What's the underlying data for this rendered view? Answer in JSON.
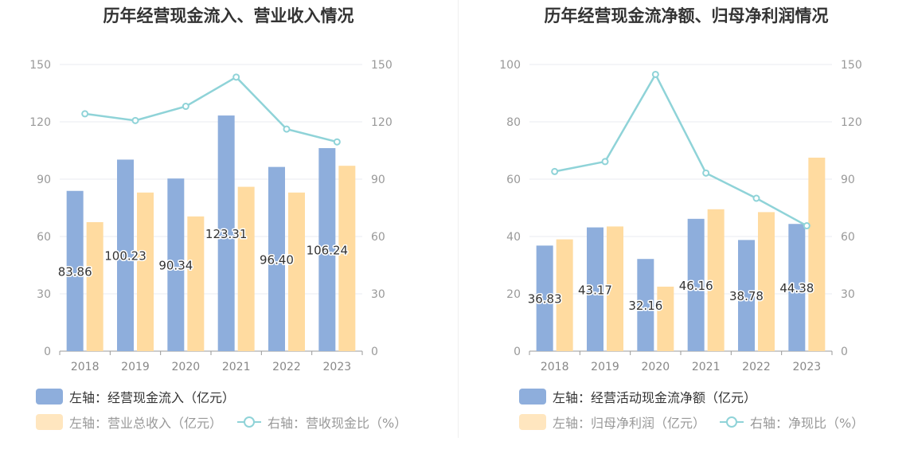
{
  "colors": {
    "bar1": "#8eaedc",
    "bar2": "#ffdba0",
    "line": "#8fd3d8",
    "grid": "#e8ebf2",
    "axis": "#999999"
  },
  "chart_data": [
    {
      "type": "bar",
      "title": "历年经营现金流入、营业收入情况",
      "categories": [
        "2018",
        "2019",
        "2020",
        "2021",
        "2022",
        "2023"
      ],
      "ylim_left": [
        0,
        150
      ],
      "ylim_right": [
        0,
        150
      ],
      "yticks_left": [
        "0",
        "30",
        "60",
        "90",
        "120",
        "150"
      ],
      "yticks_right": [
        "0",
        "30",
        "60",
        "90",
        "120",
        "150"
      ],
      "series": [
        {
          "name": "左轴：经营现金流入（亿元）",
          "type": "bar",
          "axis": "left",
          "values": [
            83.86,
            100.23,
            90.34,
            123.31,
            96.4,
            106.24
          ],
          "labels": [
            "83.86",
            "100.23",
            "90.34",
            "123.31",
            "96.40",
            "106.24"
          ]
        },
        {
          "name": "左轴：营业总收入（亿元）",
          "type": "bar",
          "axis": "left",
          "values": [
            67.5,
            83.0,
            70.5,
            86.0,
            83.0,
            97.0
          ]
        },
        {
          "name": "右轴：营收现金比（%）",
          "type": "line",
          "axis": "right",
          "values": [
            124.2,
            120.7,
            128.1,
            143.4,
            116.2,
            109.5
          ]
        }
      ],
      "legend": "bottom-left",
      "grid": true
    },
    {
      "type": "bar",
      "title": "历年经营现金流净额、归母净利润情况",
      "categories": [
        "2018",
        "2019",
        "2020",
        "2021",
        "2022",
        "2023"
      ],
      "ylim_left": [
        0,
        100
      ],
      "ylim_right": [
        0,
        150
      ],
      "yticks_left": [
        "0",
        "20",
        "40",
        "60",
        "80",
        "100"
      ],
      "yticks_right": [
        "0",
        "30",
        "60",
        "90",
        "120",
        "150"
      ],
      "series": [
        {
          "name": "左轴：经营活动现金流净额（亿元）",
          "type": "bar",
          "axis": "left",
          "values": [
            36.83,
            43.17,
            32.16,
            46.16,
            38.78,
            44.38
          ],
          "labels": [
            "36.83",
            "43.17",
            "32.16",
            "46.16",
            "38.78",
            "44.38"
          ]
        },
        {
          "name": "左轴：归母净利润（亿元）",
          "type": "bar",
          "axis": "left",
          "values": [
            39.0,
            43.5,
            22.5,
            49.5,
            48.5,
            67.5
          ]
        },
        {
          "name": "右轴：净现比（%）",
          "type": "line",
          "axis": "right",
          "values": [
            94.0,
            99.2,
            144.8,
            93.2,
            80.0,
            65.6
          ]
        }
      ],
      "legend": "bottom-left",
      "grid": true
    }
  ]
}
